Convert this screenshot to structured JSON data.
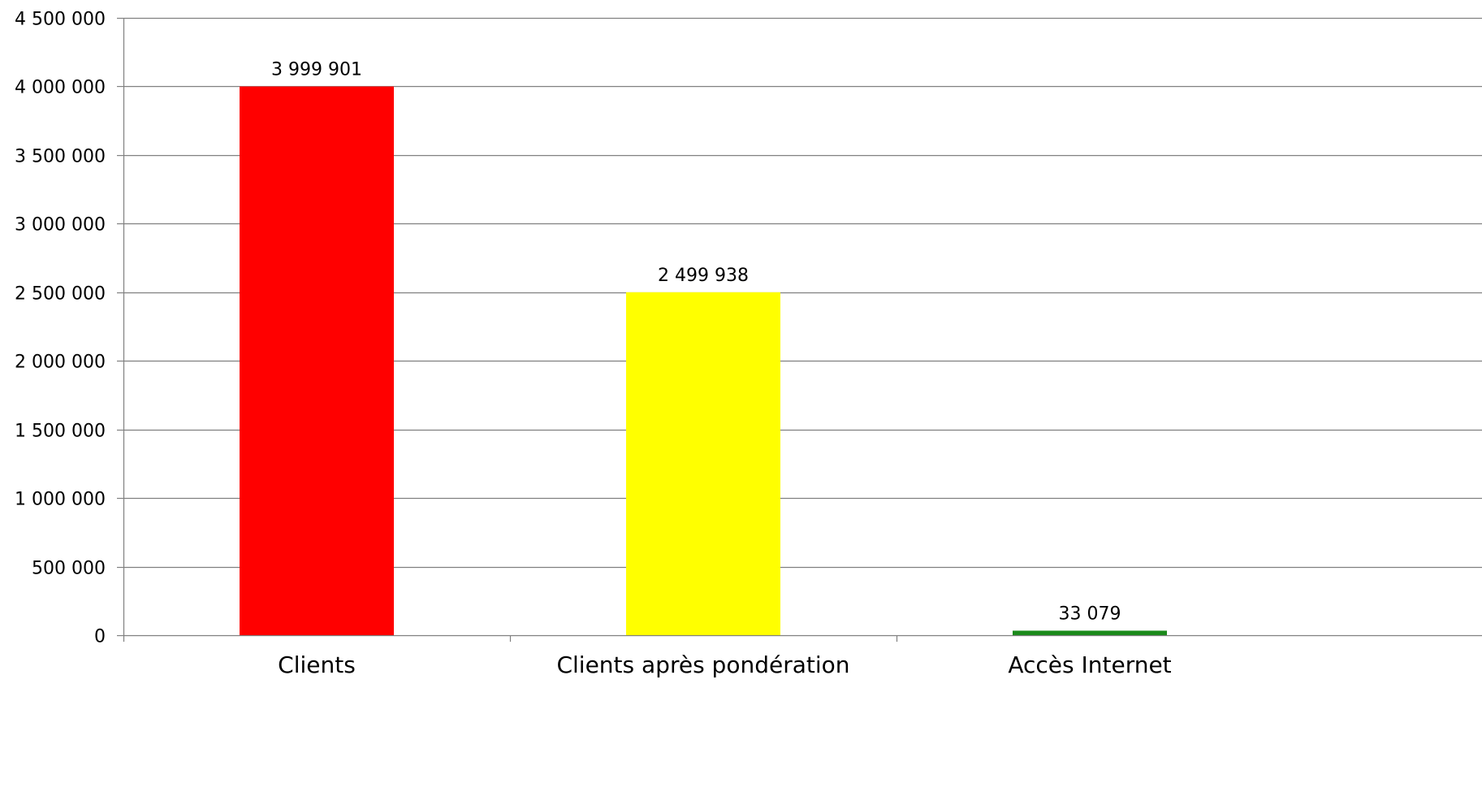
{
  "chart_data": {
    "type": "bar",
    "categories": [
      "Clients",
      "Clients après pondération",
      "Accès Internet"
    ],
    "values": [
      3999901,
      2499938,
      33079
    ],
    "data_labels": [
      "3 999 901",
      "2 499 938",
      "33 079"
    ],
    "bar_colors": [
      "#ff0000",
      "#ffff00",
      "#1a8a1a"
    ],
    "title": "",
    "xlabel": "",
    "ylabel": "",
    "ylim": [
      0,
      4500000
    ],
    "y_ticks": [
      0,
      500000,
      1000000,
      1500000,
      2000000,
      2500000,
      3000000,
      3500000,
      4000000,
      4500000
    ],
    "y_tick_labels": [
      "0",
      "500 000",
      "1 000 000",
      "1 500 000",
      "2 000 000",
      "2 500 000",
      "3 000 000",
      "3 500 000",
      "4 000 000",
      "4 500 000"
    ],
    "grid": true,
    "legend": "none",
    "grid_color": "#808080"
  }
}
